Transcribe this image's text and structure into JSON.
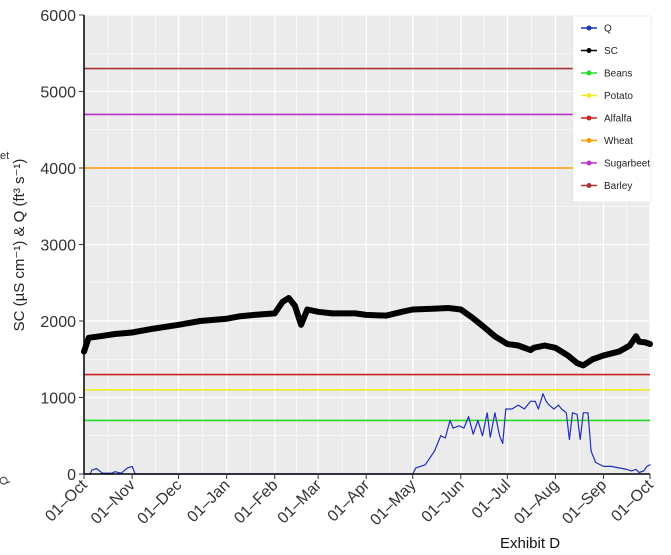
{
  "exhibit_label": "Exhibit D",
  "left_fragments": {
    "top": "et",
    "bottom": "Q"
  },
  "chart_data": {
    "type": "line",
    "ylabel": "SC (µS cm⁻¹) & Q (ft³ s⁻¹)",
    "xlabel": "",
    "ylim": [
      0,
      6000
    ],
    "yticks": [
      0,
      1000,
      2000,
      3000,
      4000,
      5000,
      6000
    ],
    "xlim": [
      0,
      365
    ],
    "xticks": [
      {
        "label": "01–Oct",
        "day": 0
      },
      {
        "label": "01–Nov",
        "day": 31
      },
      {
        "label": "01–Dec",
        "day": 61
      },
      {
        "label": "01–Jan",
        "day": 92
      },
      {
        "label": "01–Feb",
        "day": 123
      },
      {
        "label": "01–Mar",
        "day": 151
      },
      {
        "label": "01–Apr",
        "day": 182
      },
      {
        "label": "01–May",
        "day": 212
      },
      {
        "label": "01–Jun",
        "day": 243
      },
      {
        "label": "01–Jul",
        "day": 273
      },
      {
        "label": "01–Aug",
        "day": 304
      },
      {
        "label": "01–Sep",
        "day": 335
      },
      {
        "label": "01–Oct",
        "day": 365
      }
    ],
    "thresholds": [
      {
        "name": "Beans",
        "value": 700,
        "color": "#22dd22"
      },
      {
        "name": "Potato",
        "value": 1100,
        "color": "#eeee22"
      },
      {
        "name": "Alfalfa",
        "value": 1300,
        "color": "#cc2222"
      },
      {
        "name": "Wheat",
        "value": 4000,
        "color": "#ff9900"
      },
      {
        "name": "Sugarbeet",
        "value": 4700,
        "color": "#bb33cc"
      },
      {
        "name": "Barley",
        "value": 5300,
        "color": "#aa3333"
      }
    ],
    "series": [
      {
        "name": "SC",
        "color": "#000000",
        "points": [
          [
            0,
            1600
          ],
          [
            3,
            1780
          ],
          [
            10,
            1800
          ],
          [
            20,
            1830
          ],
          [
            31,
            1850
          ],
          [
            45,
            1900
          ],
          [
            61,
            1950
          ],
          [
            75,
            2000
          ],
          [
            92,
            2030
          ],
          [
            100,
            2060
          ],
          [
            110,
            2080
          ],
          [
            123,
            2100
          ],
          [
            128,
            2250
          ],
          [
            132,
            2300
          ],
          [
            136,
            2200
          ],
          [
            140,
            1950
          ],
          [
            144,
            2150
          ],
          [
            151,
            2120
          ],
          [
            160,
            2100
          ],
          [
            175,
            2100
          ],
          [
            182,
            2080
          ],
          [
            195,
            2070
          ],
          [
            205,
            2120
          ],
          [
            212,
            2150
          ],
          [
            225,
            2160
          ],
          [
            235,
            2170
          ],
          [
            243,
            2150
          ],
          [
            250,
            2050
          ],
          [
            258,
            1920
          ],
          [
            265,
            1800
          ],
          [
            273,
            1700
          ],
          [
            280,
            1680
          ],
          [
            288,
            1620
          ],
          [
            290,
            1650
          ],
          [
            297,
            1680
          ],
          [
            304,
            1650
          ],
          [
            312,
            1550
          ],
          [
            318,
            1450
          ],
          [
            322,
            1420
          ],
          [
            328,
            1500
          ],
          [
            335,
            1550
          ],
          [
            345,
            1600
          ],
          [
            352,
            1680
          ],
          [
            356,
            1800
          ],
          [
            358,
            1730
          ],
          [
            362,
            1720
          ],
          [
            365,
            1700
          ]
        ]
      },
      {
        "name": "Q",
        "color": "#1f2fbf",
        "points": [
          [
            0,
            0
          ],
          [
            4,
            0
          ],
          [
            5,
            50
          ],
          [
            8,
            70
          ],
          [
            12,
            10
          ],
          [
            18,
            10
          ],
          [
            20,
            30
          ],
          [
            24,
            10
          ],
          [
            28,
            80
          ],
          [
            31,
            100
          ],
          [
            33,
            0
          ],
          [
            212,
            0
          ],
          [
            214,
            80
          ],
          [
            220,
            120
          ],
          [
            226,
            300
          ],
          [
            230,
            500
          ],
          [
            233,
            470
          ],
          [
            236,
            700
          ],
          [
            238,
            600
          ],
          [
            242,
            630
          ],
          [
            245,
            600
          ],
          [
            248,
            750
          ],
          [
            251,
            520
          ],
          [
            254,
            700
          ],
          [
            257,
            500
          ],
          [
            260,
            800
          ],
          [
            262,
            480
          ],
          [
            265,
            800
          ],
          [
            268,
            500
          ],
          [
            270,
            400
          ],
          [
            272,
            850
          ],
          [
            276,
            850
          ],
          [
            280,
            900
          ],
          [
            284,
            850
          ],
          [
            288,
            950
          ],
          [
            291,
            950
          ],
          [
            293,
            850
          ],
          [
            296,
            1050
          ],
          [
            298,
            950
          ],
          [
            300,
            900
          ],
          [
            303,
            850
          ],
          [
            306,
            900
          ],
          [
            308,
            850
          ],
          [
            311,
            800
          ],
          [
            313,
            450
          ],
          [
            315,
            800
          ],
          [
            318,
            780
          ],
          [
            320,
            450
          ],
          [
            322,
            800
          ],
          [
            325,
            800
          ],
          [
            327,
            300
          ],
          [
            330,
            150
          ],
          [
            335,
            100
          ],
          [
            340,
            100
          ],
          [
            345,
            80
          ],
          [
            350,
            60
          ],
          [
            353,
            40
          ],
          [
            356,
            60
          ],
          [
            358,
            20
          ],
          [
            361,
            40
          ],
          [
            363,
            100
          ],
          [
            365,
            120
          ]
        ]
      }
    ],
    "legend": {
      "placement": "top-right",
      "entries": [
        {
          "name": "Q",
          "color": "#1f2fbf"
        },
        {
          "name": "SC",
          "color": "#000000"
        },
        {
          "name": "Beans",
          "color": "#22dd22"
        },
        {
          "name": "Potato",
          "color": "#eeee22"
        },
        {
          "name": "Alfalfa",
          "color": "#cc2222"
        },
        {
          "name": "Wheat",
          "color": "#ff9900"
        },
        {
          "name": "Sugarbeet",
          "color": "#bb33cc"
        },
        {
          "name": "Barley",
          "color": "#aa3333"
        }
      ]
    },
    "grid": true,
    "panel_color": "#ebebeb",
    "grid_color": "#ffffff"
  }
}
